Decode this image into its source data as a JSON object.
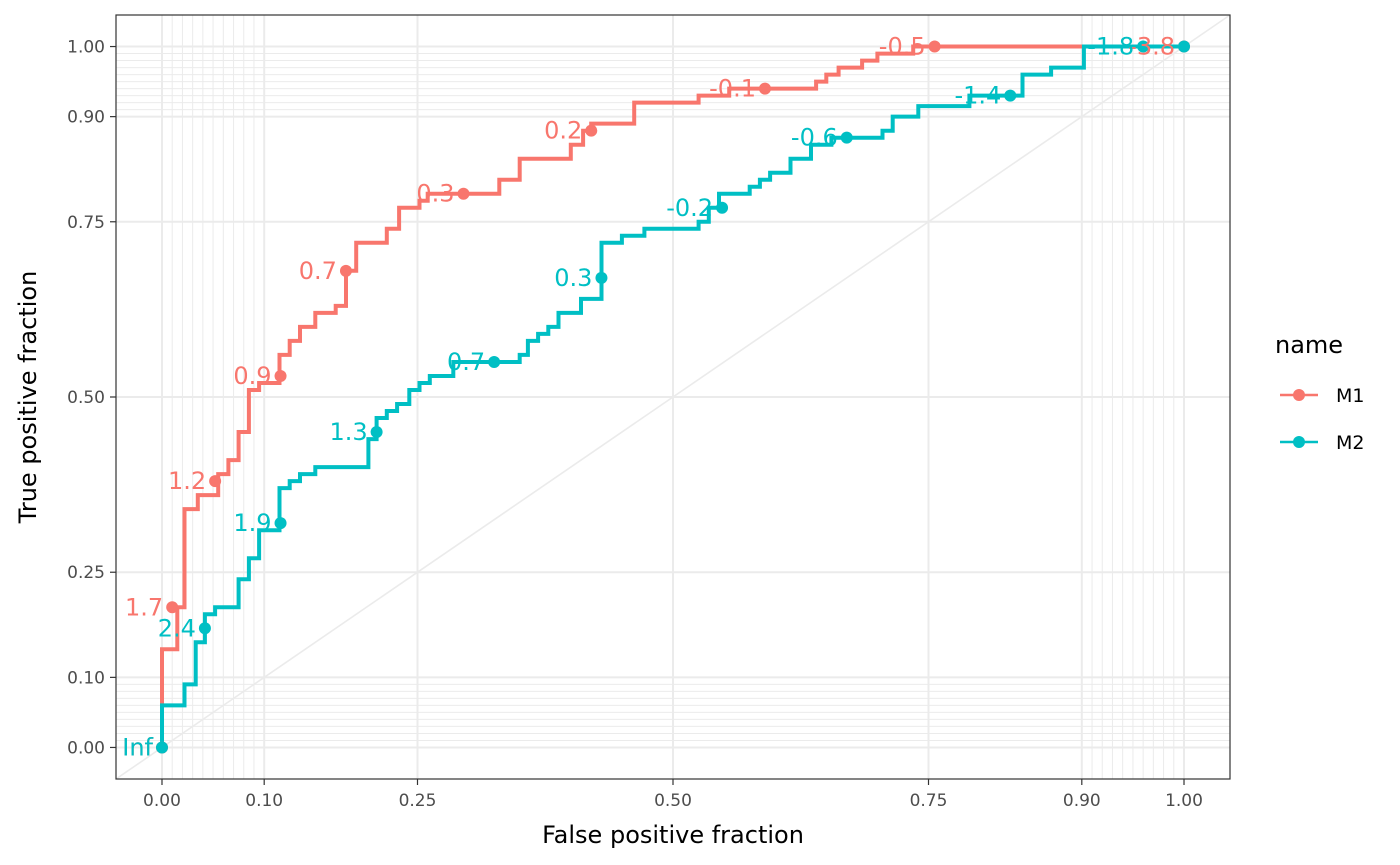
{
  "chart_data": {
    "type": "line",
    "xlabel": "False positive fraction",
    "ylabel": "True positive fraction",
    "xlim": [
      -0.045,
      1.045
    ],
    "ylim": [
      -0.045,
      1.045
    ],
    "major_ticks": [
      0.0,
      0.1,
      0.25,
      0.5,
      0.75,
      0.9,
      1.0
    ],
    "tick_labels": [
      "0.00",
      "0.10",
      "0.25",
      "0.50",
      "0.75",
      "0.90",
      "1.00"
    ],
    "minor_grid": [
      0.01,
      0.02,
      0.03,
      0.04,
      0.05,
      0.06,
      0.07,
      0.08,
      0.09,
      0.91,
      0.92,
      0.93,
      0.94,
      0.95,
      0.96,
      0.97,
      0.98,
      0.99
    ],
    "grid": true,
    "reference_line": [
      [
        0,
        0
      ],
      [
        1,
        1
      ]
    ],
    "legend": {
      "title": "name",
      "position": "right"
    },
    "series": [
      {
        "name": "M1",
        "color": "#F8766D",
        "steps": [
          [
            0,
            0
          ],
          [
            0,
            0.06
          ],
          [
            0,
            0.14
          ],
          [
            0.015,
            0.14
          ],
          [
            0.015,
            0.2
          ],
          [
            0.022,
            0.2
          ],
          [
            0.022,
            0.34
          ],
          [
            0.035,
            0.34
          ],
          [
            0.035,
            0.36
          ],
          [
            0.055,
            0.36
          ],
          [
            0.055,
            0.39
          ],
          [
            0.065,
            0.39
          ],
          [
            0.065,
            0.41
          ],
          [
            0.075,
            0.41
          ],
          [
            0.075,
            0.45
          ],
          [
            0.085,
            0.45
          ],
          [
            0.085,
            0.51
          ],
          [
            0.095,
            0.51
          ],
          [
            0.095,
            0.52
          ],
          [
            0.115,
            0.52
          ],
          [
            0.115,
            0.56
          ],
          [
            0.125,
            0.56
          ],
          [
            0.125,
            0.58
          ],
          [
            0.135,
            0.58
          ],
          [
            0.135,
            0.6
          ],
          [
            0.15,
            0.6
          ],
          [
            0.15,
            0.62
          ],
          [
            0.17,
            0.62
          ],
          [
            0.17,
            0.63
          ],
          [
            0.18,
            0.63
          ],
          [
            0.18,
            0.68
          ],
          [
            0.19,
            0.68
          ],
          [
            0.19,
            0.72
          ],
          [
            0.22,
            0.72
          ],
          [
            0.22,
            0.74
          ],
          [
            0.232,
            0.74
          ],
          [
            0.232,
            0.77
          ],
          [
            0.252,
            0.77
          ],
          [
            0.252,
            0.78
          ],
          [
            0.26,
            0.78
          ],
          [
            0.26,
            0.79
          ],
          [
            0.33,
            0.79
          ],
          [
            0.33,
            0.81
          ],
          [
            0.35,
            0.81
          ],
          [
            0.35,
            0.84
          ],
          [
            0.4,
            0.84
          ],
          [
            0.4,
            0.86
          ],
          [
            0.412,
            0.86
          ],
          [
            0.412,
            0.88
          ],
          [
            0.42,
            0.88
          ],
          [
            0.42,
            0.89
          ],
          [
            0.462,
            0.89
          ],
          [
            0.462,
            0.92
          ],
          [
            0.525,
            0.92
          ],
          [
            0.525,
            0.93
          ],
          [
            0.555,
            0.93
          ],
          [
            0.555,
            0.94
          ],
          [
            0.64,
            0.94
          ],
          [
            0.64,
            0.95
          ],
          [
            0.65,
            0.95
          ],
          [
            0.65,
            0.96
          ],
          [
            0.662,
            0.96
          ],
          [
            0.662,
            0.97
          ],
          [
            0.685,
            0.97
          ],
          [
            0.685,
            0.98
          ],
          [
            0.7,
            0.98
          ],
          [
            0.7,
            0.99
          ],
          [
            0.735,
            0.99
          ],
          [
            0.735,
            1.0
          ],
          [
            1.0,
            1.0
          ]
        ],
        "points": [
          {
            "x": 0.0,
            "y": 0.0,
            "label": "Inf"
          },
          {
            "x": 0.01,
            "y": 0.2,
            "label": "1.7"
          },
          {
            "x": 0.052,
            "y": 0.38,
            "label": "1.2"
          },
          {
            "x": 0.116,
            "y": 0.53,
            "label": "0.9"
          },
          {
            "x": 0.18,
            "y": 0.68,
            "label": "0.7"
          },
          {
            "x": 0.295,
            "y": 0.79,
            "label": "0.3"
          },
          {
            "x": 0.42,
            "y": 0.88,
            "label": "0.2"
          },
          {
            "x": 0.59,
            "y": 0.94,
            "label": "-0.1"
          },
          {
            "x": 0.756,
            "y": 1.0,
            "label": "-0.5"
          },
          {
            "x": 1.0,
            "y": 1.0,
            "label": "-3.8"
          }
        ]
      },
      {
        "name": "M2",
        "color": "#00BFC4",
        "steps": [
          [
            0,
            0
          ],
          [
            0,
            0.06
          ],
          [
            0.022,
            0.06
          ],
          [
            0.022,
            0.09
          ],
          [
            0.033,
            0.09
          ],
          [
            0.033,
            0.15
          ],
          [
            0.042,
            0.15
          ],
          [
            0.042,
            0.19
          ],
          [
            0.052,
            0.19
          ],
          [
            0.052,
            0.2
          ],
          [
            0.075,
            0.2
          ],
          [
            0.075,
            0.24
          ],
          [
            0.085,
            0.24
          ],
          [
            0.085,
            0.27
          ],
          [
            0.095,
            0.27
          ],
          [
            0.095,
            0.31
          ],
          [
            0.115,
            0.31
          ],
          [
            0.115,
            0.37
          ],
          [
            0.125,
            0.37
          ],
          [
            0.125,
            0.38
          ],
          [
            0.135,
            0.38
          ],
          [
            0.135,
            0.39
          ],
          [
            0.15,
            0.39
          ],
          [
            0.15,
            0.4
          ],
          [
            0.202,
            0.4
          ],
          [
            0.202,
            0.44
          ],
          [
            0.21,
            0.44
          ],
          [
            0.21,
            0.47
          ],
          [
            0.22,
            0.47
          ],
          [
            0.22,
            0.48
          ],
          [
            0.23,
            0.48
          ],
          [
            0.23,
            0.49
          ],
          [
            0.242,
            0.49
          ],
          [
            0.242,
            0.51
          ],
          [
            0.252,
            0.51
          ],
          [
            0.252,
            0.52
          ],
          [
            0.262,
            0.52
          ],
          [
            0.262,
            0.53
          ],
          [
            0.285,
            0.53
          ],
          [
            0.285,
            0.55
          ],
          [
            0.35,
            0.55
          ],
          [
            0.35,
            0.56
          ],
          [
            0.358,
            0.56
          ],
          [
            0.358,
            0.58
          ],
          [
            0.368,
            0.58
          ],
          [
            0.368,
            0.59
          ],
          [
            0.378,
            0.59
          ],
          [
            0.378,
            0.6
          ],
          [
            0.388,
            0.6
          ],
          [
            0.388,
            0.62
          ],
          [
            0.41,
            0.62
          ],
          [
            0.41,
            0.64
          ],
          [
            0.43,
            0.64
          ],
          [
            0.43,
            0.72
          ],
          [
            0.45,
            0.72
          ],
          [
            0.45,
            0.73
          ],
          [
            0.472,
            0.73
          ],
          [
            0.472,
            0.74
          ],
          [
            0.525,
            0.74
          ],
          [
            0.525,
            0.75
          ],
          [
            0.535,
            0.75
          ],
          [
            0.535,
            0.77
          ],
          [
            0.545,
            0.77
          ],
          [
            0.545,
            0.79
          ],
          [
            0.575,
            0.79
          ],
          [
            0.575,
            0.8
          ],
          [
            0.585,
            0.8
          ],
          [
            0.585,
            0.81
          ],
          [
            0.595,
            0.81
          ],
          [
            0.595,
            0.82
          ],
          [
            0.615,
            0.82
          ],
          [
            0.615,
            0.84
          ],
          [
            0.635,
            0.84
          ],
          [
            0.635,
            0.86
          ],
          [
            0.655,
            0.86
          ],
          [
            0.655,
            0.87
          ],
          [
            0.705,
            0.87
          ],
          [
            0.705,
            0.88
          ],
          [
            0.715,
            0.88
          ],
          [
            0.715,
            0.9
          ],
          [
            0.74,
            0.9
          ],
          [
            0.74,
            0.915
          ],
          [
            0.79,
            0.915
          ],
          [
            0.79,
            0.93
          ],
          [
            0.842,
            0.93
          ],
          [
            0.842,
            0.96
          ],
          [
            0.87,
            0.96
          ],
          [
            0.87,
            0.97
          ],
          [
            0.902,
            0.97
          ],
          [
            0.902,
            1.0
          ],
          [
            1.0,
            1.0
          ]
        ],
        "points": [
          {
            "x": 0.0,
            "y": 0.0,
            "label": "Inf"
          },
          {
            "x": 0.042,
            "y": 0.17,
            "label": "2.4"
          },
          {
            "x": 0.116,
            "y": 0.32,
            "label": "1.9"
          },
          {
            "x": 0.21,
            "y": 0.45,
            "label": "1.3"
          },
          {
            "x": 0.325,
            "y": 0.55,
            "label": "0.7"
          },
          {
            "x": 0.43,
            "y": 0.67,
            "label": "0.3"
          },
          {
            "x": 0.548,
            "y": 0.77,
            "label": "-0.2"
          },
          {
            "x": 0.67,
            "y": 0.87,
            "label": "-0.6"
          },
          {
            "x": 0.83,
            "y": 0.93,
            "label": "-1.4"
          },
          {
            "x": 0.96,
            "y": 1.0,
            "label": "-1.8"
          },
          {
            "x": 1.0,
            "y": 1.0,
            "label": ""
          }
        ]
      }
    ]
  }
}
